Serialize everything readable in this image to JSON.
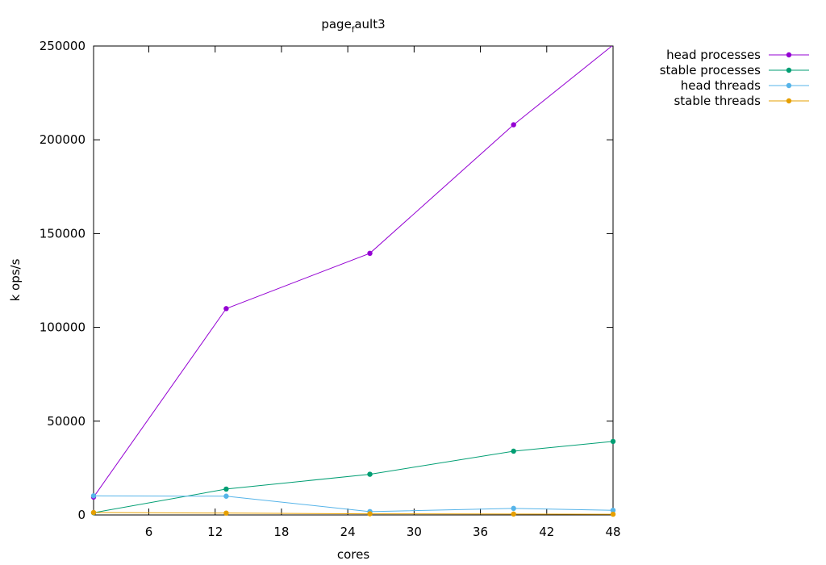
{
  "chart_data": {
    "type": "line",
    "title_main": "page",
    "title_sub": "f",
    "title_rest": "ault3",
    "xlabel": "cores",
    "ylabel": "k ops/s",
    "xlim": [
      1,
      48
    ],
    "ylim": [
      0,
      250000
    ],
    "xticks": [
      6,
      12,
      18,
      24,
      30,
      36,
      42,
      48
    ],
    "yticks": [
      0,
      50000,
      100000,
      150000,
      200000,
      250000
    ],
    "legend_position": "top-right outside",
    "series": [
      {
        "name": "head processes",
        "color": "#9400d3",
        "x": [
          1,
          13,
          26,
          39,
          48
        ],
        "y": [
          9500,
          110000,
          139500,
          208000,
          250500
        ]
      },
      {
        "name": "stable processes",
        "color": "#009e73",
        "x": [
          1,
          13,
          26,
          39,
          48
        ],
        "y": [
          1200,
          13800,
          21700,
          34000,
          39200
        ]
      },
      {
        "name": "head threads",
        "color": "#56b4e9",
        "x": [
          1,
          13,
          26,
          39,
          48
        ],
        "y": [
          10200,
          10000,
          1800,
          3500,
          2500
        ]
      },
      {
        "name": "stable threads",
        "color": "#e69f00",
        "x": [
          1,
          13,
          26,
          39,
          48
        ],
        "y": [
          1300,
          1000,
          600,
          500,
          400
        ]
      }
    ]
  }
}
